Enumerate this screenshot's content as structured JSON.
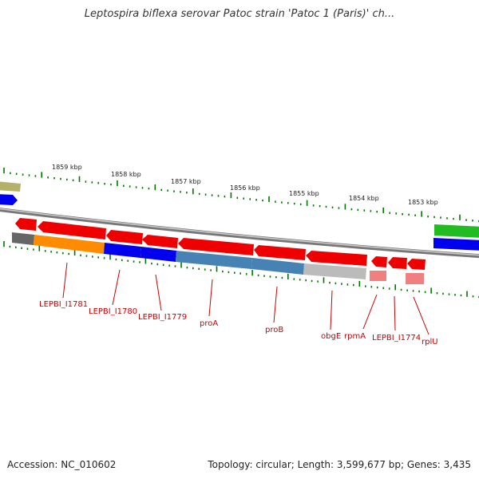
{
  "title": "Leptospira biflexa serovar Patoc strain 'Patoc 1 (Paris)' ch...",
  "footer": {
    "accession": "Accession: NC_010602",
    "topology": "Topology: circular; Length: 3,599,677 bp; Genes: 3,435"
  },
  "ruler": {
    "ticks": [
      {
        "label": "1859 kbp"
      },
      {
        "label": "1858 kbp"
      },
      {
        "label": "1857 kbp"
      },
      {
        "label": "1856 kbp"
      },
      {
        "label": "1855 kbp"
      },
      {
        "label": "1854 kbp"
      },
      {
        "label": "1853 kbp"
      }
    ]
  },
  "genes": [
    {
      "label": "LEPBI_I1781"
    },
    {
      "label": "LEPBI_I1780"
    },
    {
      "label": "LEPBI_I1779"
    },
    {
      "label": "proA"
    },
    {
      "label": "proB"
    },
    {
      "label": "obgE"
    },
    {
      "label": "rpmA"
    },
    {
      "label": "LEPBI_I1774"
    },
    {
      "label": "rplU"
    }
  ],
  "colors": {
    "gene_arrow": "#ff0000",
    "orange": "#ff8c00",
    "blue": "#0000ee",
    "steel": "#4682b4",
    "gray": "#bbbbbb",
    "pink": "#f08080",
    "green": "#22bb22",
    "olive": "#b5b06a",
    "label": "#cc0000",
    "tick": "#007700"
  }
}
